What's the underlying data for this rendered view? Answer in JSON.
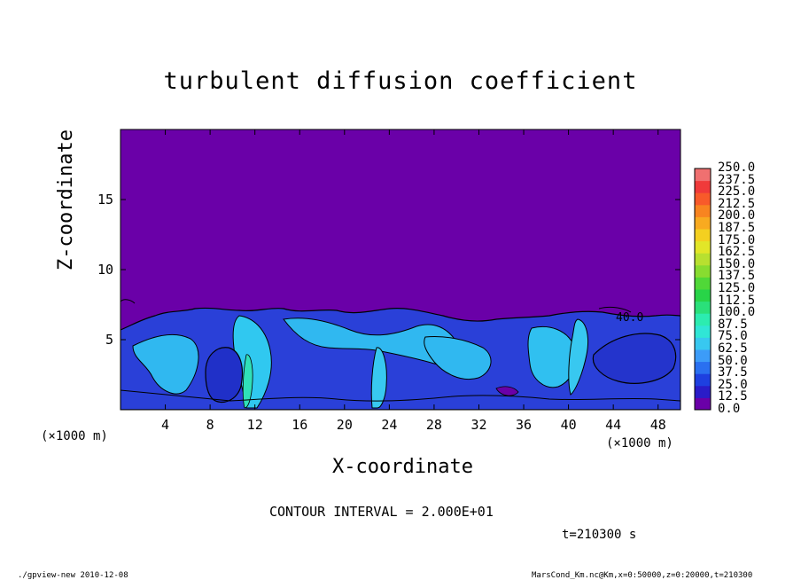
{
  "chart_data": {
    "type": "heatmap",
    "title": "turbulent diffusion coefficient",
    "xlabel": "X-coordinate",
    "ylabel": "Z-coordinate",
    "x_unit_label": "(×1000 m)",
    "y_unit_label": "(×1000 m)",
    "xlim": [
      0,
      50
    ],
    "ylim": [
      0,
      20
    ],
    "x_ticks": [
      4,
      8,
      12,
      16,
      20,
      24,
      28,
      32,
      36,
      40,
      44,
      48
    ],
    "y_ticks": [
      5,
      10,
      15
    ],
    "contour_interval_text": "CONTOUR INTERVAL = 2.000E+01",
    "contour_label": "40.0",
    "time_text": "t=210300 s",
    "colorbar": {
      "levels": [
        "0.0",
        "12.5",
        "25.0",
        "37.5",
        "50.0",
        "62.5",
        "75.0",
        "87.5",
        "100.0",
        "112.5",
        "125.0",
        "137.5",
        "150.0",
        "162.5",
        "175.0",
        "187.5",
        "200.0",
        "212.5",
        "225.0",
        "237.5",
        "250.0"
      ],
      "colors": [
        "#6a00a8",
        "#2a1cc8",
        "#1e40e0",
        "#2a70f0",
        "#3c9cf8",
        "#38c8f0",
        "#30e6d6",
        "#2cecb0",
        "#2ae07a",
        "#28d448",
        "#50d838",
        "#88dc30",
        "#b8e030",
        "#e2e628",
        "#f4d020",
        "#f8aa20",
        "#f88420",
        "#f85a2a",
        "#f03a3a",
        "#f07070"
      ]
    },
    "background_value_color": "#6a00a8"
  },
  "footer": {
    "left": "./gpview-new  2010-12-08",
    "right": "MarsCond_Km.nc@Km,x=0:50000,z=0:20000,t=210300"
  }
}
